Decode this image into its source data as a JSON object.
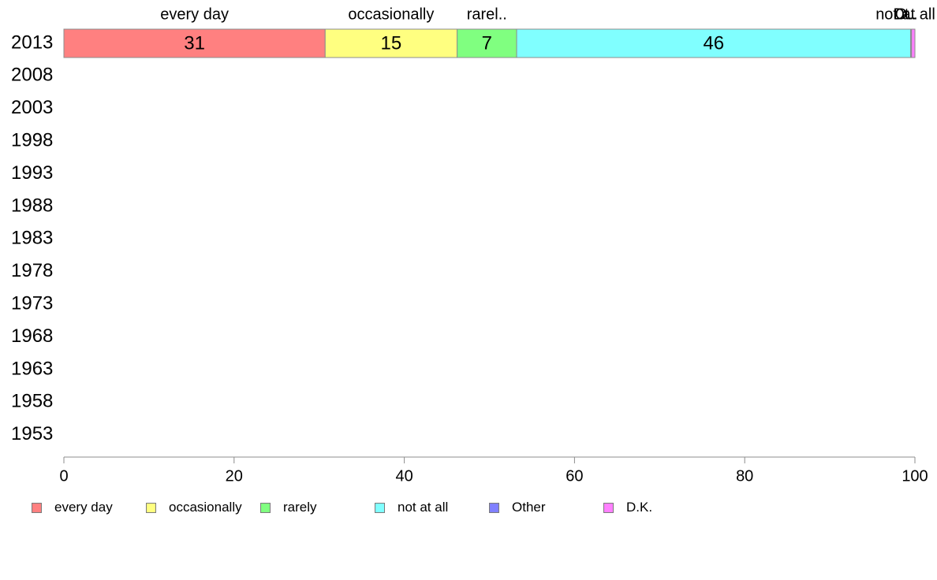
{
  "chart_data": {
    "type": "bar",
    "orientation": "horizontal",
    "stacked": true,
    "categories": [
      "2013",
      "2008",
      "2003",
      "1998",
      "1993",
      "1988",
      "1983",
      "1978",
      "1973",
      "1968",
      "1963",
      "1958",
      "1953"
    ],
    "series": [
      {
        "name": "every day",
        "color": "#ff8080",
        "values": [
          30.7,
          null,
          null,
          null,
          null,
          null,
          null,
          null,
          null,
          null,
          null,
          null,
          null
        ],
        "data_labels": [
          "31"
        ],
        "top_label": "every day"
      },
      {
        "name": "occasionally",
        "color": "#ffff80",
        "values": [
          15.5,
          null,
          null,
          null,
          null,
          null,
          null,
          null,
          null,
          null,
          null,
          null,
          null
        ],
        "data_labels": [
          "15"
        ],
        "top_label": "occasionally"
      },
      {
        "name": "rarely",
        "color": "#80ff80",
        "values": [
          7.0,
          null,
          null,
          null,
          null,
          null,
          null,
          null,
          null,
          null,
          null,
          null,
          null
        ],
        "data_labels": [
          "7"
        ],
        "top_label": "rarel.."
      },
      {
        "name": "not at all",
        "color": "#80ffff",
        "values": [
          46.3,
          null,
          null,
          null,
          null,
          null,
          null,
          null,
          null,
          null,
          null,
          null,
          null
        ],
        "data_labels": [
          "46"
        ],
        "top_label": "not at all"
      },
      {
        "name": "Other",
        "color": "#8080ff",
        "values": [
          0.1,
          null,
          null,
          null,
          null,
          null,
          null,
          null,
          null,
          null,
          null,
          null,
          null
        ],
        "data_labels": [
          ""
        ],
        "top_label": "O.."
      },
      {
        "name": "D.K.",
        "color": "#ff80ff",
        "values": [
          0.4,
          null,
          null,
          null,
          null,
          null,
          null,
          null,
          null,
          null,
          null,
          null,
          null
        ],
        "data_labels": [
          ""
        ],
        "top_label": "Dt.."
      }
    ],
    "xlim": [
      0,
      100
    ],
    "xticks": [
      0,
      20,
      40,
      60,
      80,
      100
    ],
    "xtick_labels": [
      "0",
      "20",
      "40",
      "60",
      "80",
      "100"
    ],
    "title": "",
    "xlabel": "",
    "ylabel": "",
    "grid": false,
    "legend_position": "bottom-left"
  }
}
